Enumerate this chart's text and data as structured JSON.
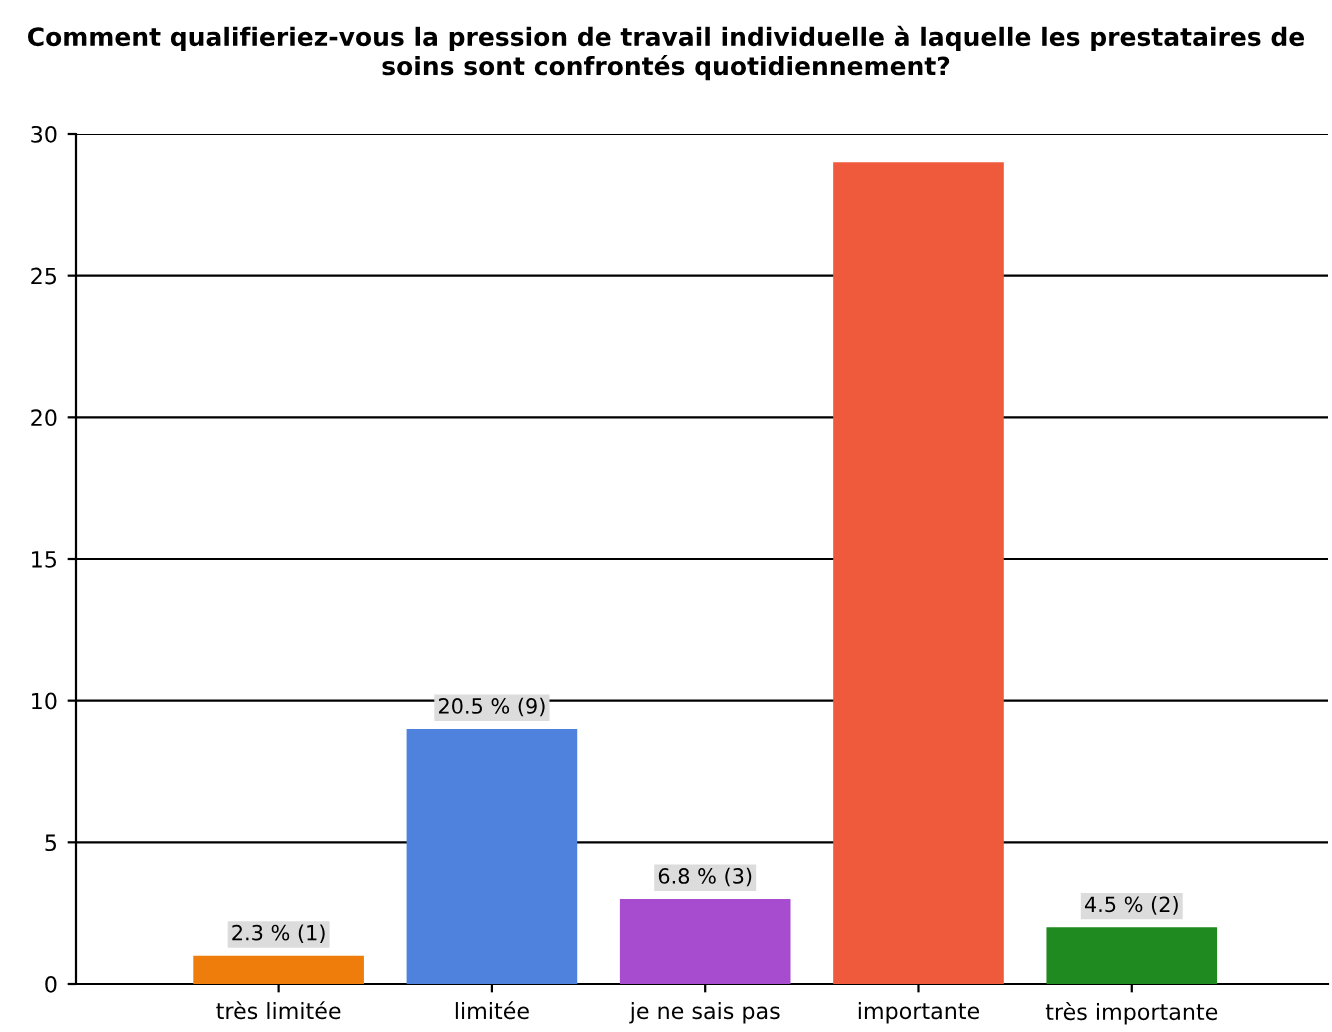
{
  "chart_data": {
    "type": "bar",
    "title": "Comment qualifieriez-vous la pression de travail individuelle à laquelle les prestataires de soins sont confrontés quotidiennement?",
    "categories": [
      "très limitée",
      "limitée",
      "je ne sais pas",
      "importante",
      "très importante"
    ],
    "values": [
      1,
      9,
      3,
      29,
      2
    ],
    "colors": [
      "#ef7d0c",
      "#4f82dc",
      "#a84ccf",
      "#f05a3c",
      "#1f8a1f"
    ],
    "value_labels": [
      "2.3 % (1)",
      "20.5 % (9)",
      "6.8 % (3)",
      null,
      "4.5 % (2)"
    ],
    "ylim": [
      0,
      30
    ],
    "yticks": [
      0,
      5,
      10,
      15,
      20,
      25,
      30
    ],
    "grid": "y"
  }
}
